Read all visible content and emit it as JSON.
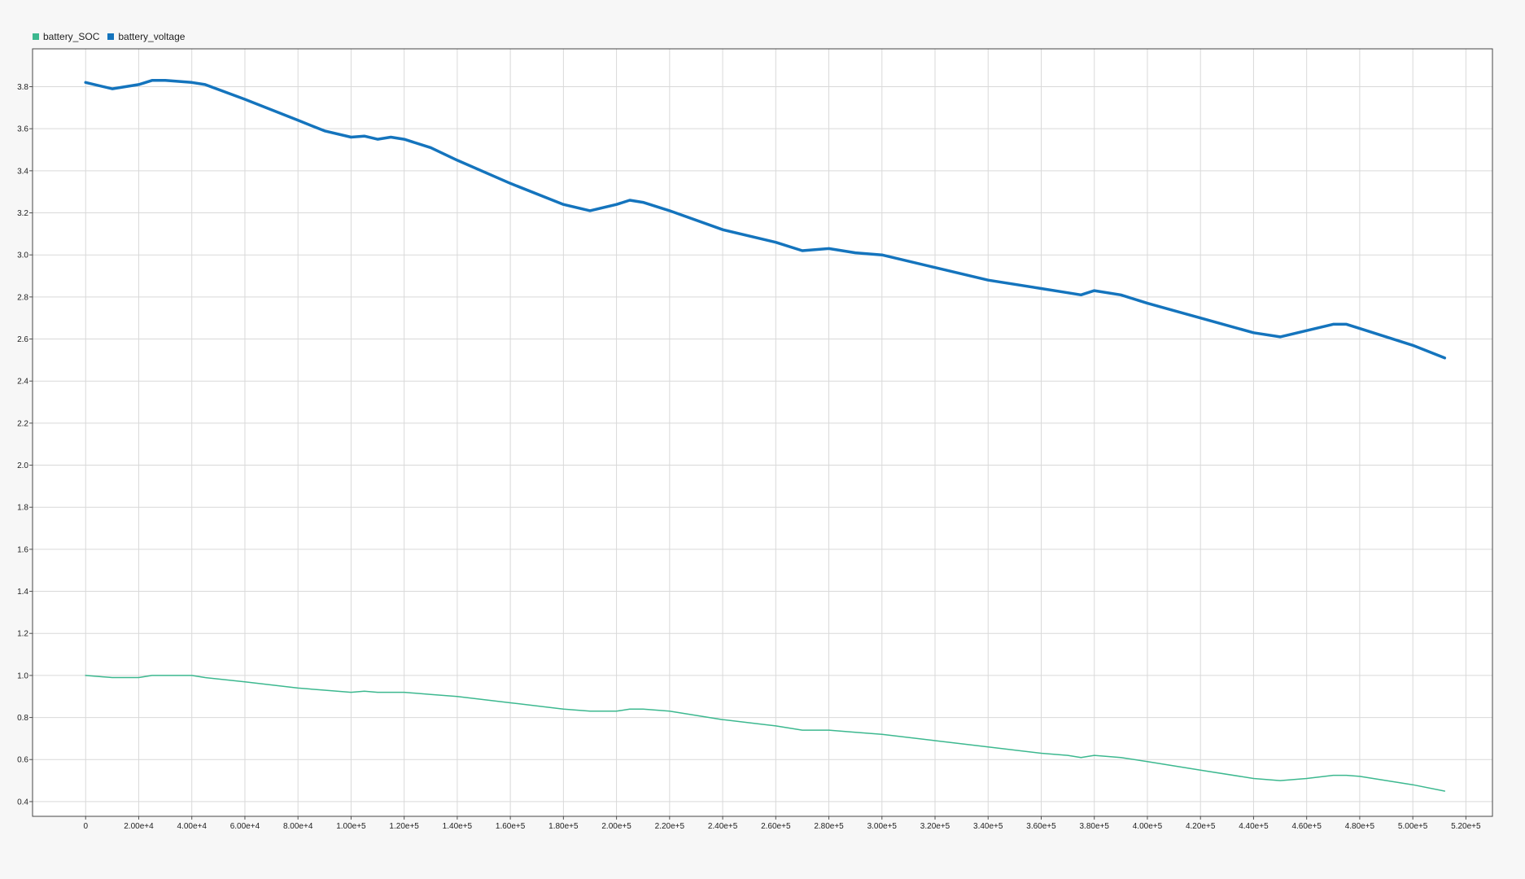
{
  "legend": {
    "items": [
      {
        "label": "battery_SOC",
        "color": "#3cb88f"
      },
      {
        "label": "battery_voltage",
        "color": "#1474bd"
      }
    ]
  },
  "chart_data": {
    "type": "line",
    "title": "",
    "xlabel": "",
    "ylabel": "",
    "xlim": [
      -20000,
      530000
    ],
    "ylim": [
      0.33,
      3.98
    ],
    "grid": true,
    "legend_position": "top-left",
    "x_ticks": [
      0,
      20000,
      40000,
      60000,
      80000,
      100000,
      120000,
      140000,
      160000,
      180000,
      200000,
      220000,
      240000,
      260000,
      280000,
      300000,
      320000,
      340000,
      360000,
      380000,
      400000,
      420000,
      440000,
      460000,
      480000,
      500000,
      520000
    ],
    "x_tick_labels": [
      "0",
      "2.00e+4",
      "4.00e+4",
      "6.00e+4",
      "8.00e+4",
      "1.00e+5",
      "1.20e+5",
      "1.40e+5",
      "1.60e+5",
      "1.80e+5",
      "2.00e+5",
      "2.20e+5",
      "2.40e+5",
      "2.60e+5",
      "2.80e+5",
      "3.00e+5",
      "3.20e+5",
      "3.40e+5",
      "3.60e+5",
      "3.80e+5",
      "4.00e+5",
      "4.20e+5",
      "4.40e+5",
      "4.60e+5",
      "4.80e+5",
      "5.00e+5",
      "5.20e+5"
    ],
    "y_ticks": [
      0.4,
      0.6,
      0.8,
      1.0,
      1.2,
      1.4,
      1.6,
      1.8,
      2.0,
      2.2,
      2.4,
      2.6,
      2.8,
      3.0,
      3.2,
      3.4,
      3.6,
      3.8
    ],
    "y_tick_labels": [
      "0.4",
      "0.6",
      "0.8",
      "1.0",
      "1.2",
      "1.4",
      "1.6",
      "1.8",
      "2.0",
      "2.2",
      "2.4",
      "2.6",
      "2.8",
      "3.0",
      "3.2",
      "3.4",
      "3.6",
      "3.8"
    ],
    "series": [
      {
        "name": "battery_voltage",
        "color": "#1474bd",
        "x": [
          0,
          10000,
          20000,
          25000,
          30000,
          40000,
          45000,
          60000,
          80000,
          90000,
          100000,
          105000,
          110000,
          115000,
          120000,
          130000,
          140000,
          160000,
          180000,
          190000,
          200000,
          205000,
          210000,
          220000,
          240000,
          260000,
          270000,
          280000,
          290000,
          300000,
          320000,
          340000,
          360000,
          370000,
          375000,
          380000,
          390000,
          400000,
          420000,
          440000,
          450000,
          460000,
          470000,
          475000,
          480000,
          500000,
          512000
        ],
        "values": [
          3.82,
          3.79,
          3.81,
          3.83,
          3.83,
          3.82,
          3.81,
          3.74,
          3.64,
          3.59,
          3.56,
          3.565,
          3.55,
          3.56,
          3.55,
          3.51,
          3.45,
          3.34,
          3.24,
          3.21,
          3.24,
          3.26,
          3.25,
          3.21,
          3.12,
          3.06,
          3.02,
          3.03,
          3.01,
          3.0,
          2.94,
          2.88,
          2.84,
          2.82,
          2.81,
          2.83,
          2.81,
          2.77,
          2.7,
          2.63,
          2.61,
          2.64,
          2.67,
          2.67,
          2.65,
          2.57,
          2.51
        ]
      },
      {
        "name": "battery_SOC",
        "color": "#3cb88f",
        "x": [
          0,
          10000,
          20000,
          25000,
          30000,
          40000,
          45000,
          60000,
          80000,
          90000,
          100000,
          105000,
          110000,
          115000,
          120000,
          130000,
          140000,
          160000,
          180000,
          190000,
          200000,
          205000,
          210000,
          220000,
          240000,
          260000,
          270000,
          280000,
          290000,
          300000,
          320000,
          340000,
          360000,
          370000,
          375000,
          380000,
          390000,
          400000,
          420000,
          440000,
          450000,
          460000,
          470000,
          475000,
          480000,
          500000,
          512000
        ],
        "values": [
          1.0,
          0.99,
          0.99,
          1.0,
          1.0,
          1.0,
          0.99,
          0.97,
          0.94,
          0.93,
          0.92,
          0.925,
          0.92,
          0.92,
          0.92,
          0.91,
          0.9,
          0.87,
          0.84,
          0.83,
          0.83,
          0.84,
          0.84,
          0.83,
          0.79,
          0.76,
          0.74,
          0.74,
          0.73,
          0.72,
          0.69,
          0.66,
          0.63,
          0.62,
          0.61,
          0.62,
          0.61,
          0.59,
          0.55,
          0.51,
          0.5,
          0.51,
          0.525,
          0.525,
          0.52,
          0.48,
          0.45
        ]
      }
    ]
  }
}
